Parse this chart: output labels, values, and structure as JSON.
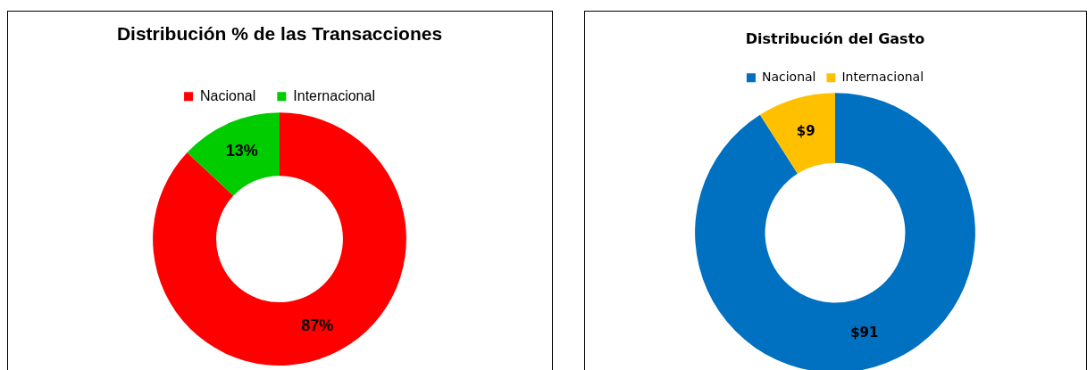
{
  "chart_data": [
    {
      "type": "donut",
      "title": "Distribución % de las Transacciones",
      "categories": [
        "Nacional",
        "Internacional"
      ],
      "values": [
        87,
        13
      ],
      "colors": [
        "#ff0000",
        "#00cc00"
      ],
      "value_labels": [
        "87%",
        "13%"
      ],
      "legend": "top"
    },
    {
      "type": "donut",
      "title": "Distribución del Gasto",
      "categories": [
        "Nacional",
        "Internacional"
      ],
      "values": [
        91,
        9
      ],
      "colors": [
        "#0070c0",
        "#ffc000"
      ],
      "value_labels": [
        "$91",
        "$9"
      ],
      "legend": "top"
    }
  ]
}
